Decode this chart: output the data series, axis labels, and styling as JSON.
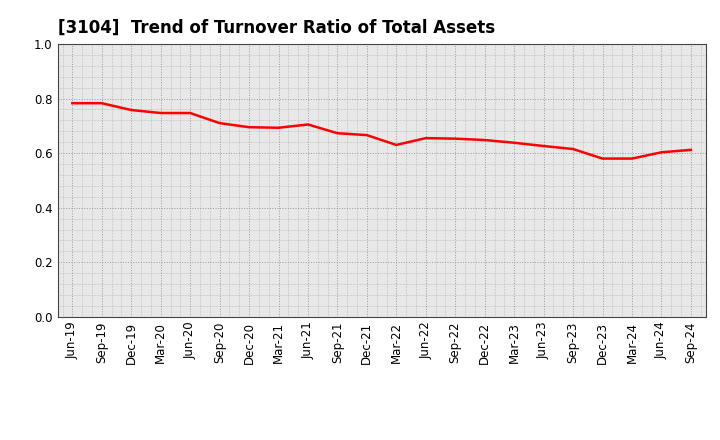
{
  "title": "[3104]  Trend of Turnover Ratio of Total Assets",
  "x_labels": [
    "Jun-19",
    "Sep-19",
    "Dec-19",
    "Mar-20",
    "Jun-20",
    "Sep-20",
    "Dec-20",
    "Mar-21",
    "Jun-21",
    "Sep-21",
    "Dec-21",
    "Mar-22",
    "Jun-22",
    "Sep-22",
    "Dec-22",
    "Mar-23",
    "Jun-23",
    "Sep-23",
    "Dec-23",
    "Mar-24",
    "Jun-24",
    "Sep-24"
  ],
  "y_values": [
    0.783,
    0.783,
    0.758,
    0.747,
    0.747,
    0.71,
    0.695,
    0.693,
    0.705,
    0.673,
    0.666,
    0.63,
    0.655,
    0.653,
    0.648,
    0.638,
    0.626,
    0.615,
    0.58,
    0.58,
    0.603,
    0.612
  ],
  "line_color": "#ff0000",
  "line_width": 1.8,
  "ylim": [
    0.0,
    1.0
  ],
  "yticks": [
    0.0,
    0.2,
    0.4,
    0.6,
    0.8,
    1.0
  ],
  "grid_color": "#999999",
  "grid_style": "dotted",
  "plot_bg_color": "#e8e8e8",
  "fig_bg_color": "#ffffff",
  "title_fontsize": 12,
  "tick_fontsize": 8.5,
  "spine_color": "#444444"
}
